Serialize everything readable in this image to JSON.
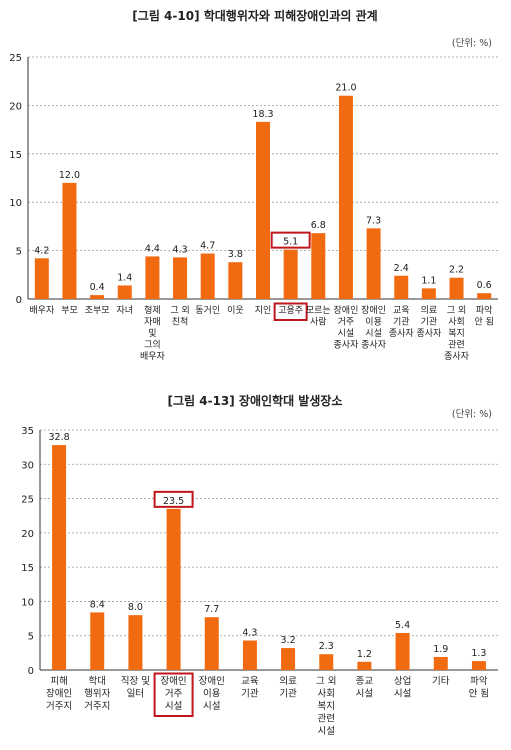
{
  "chart_data": [
    {
      "type": "bar",
      "title": "[그림 4-10] 학대행위자와 피해장애인과의 관계",
      "unit_note": "(단위: %)",
      "ylim": [
        0,
        25
      ],
      "yticks": [
        0,
        5,
        10,
        15,
        20,
        25
      ],
      "grid": true,
      "bar_color": "#f26a10",
      "highlight_color": "#c0161d",
      "highlight_index": 9,
      "categories": [
        [
          "배우자"
        ],
        [
          "부모"
        ],
        [
          "조부모"
        ],
        [
          "자녀"
        ],
        [
          "형제",
          "자매",
          "및",
          "그의",
          "배우자"
        ],
        [
          "그 외",
          "친척"
        ],
        [
          "동거인"
        ],
        [
          "이웃"
        ],
        [
          "지인"
        ],
        [
          "고용주"
        ],
        [
          "모르는",
          "사람"
        ],
        [
          "장애인",
          "거주",
          "시설",
          "종사자"
        ],
        [
          "장애인",
          "이용",
          "시설",
          "종사자"
        ],
        [
          "교육",
          "기관",
          "종사자"
        ],
        [
          "의료",
          "기관",
          "종사자"
        ],
        [
          "그 외",
          "사회",
          "복지",
          "관련",
          "종사자"
        ],
        [
          "파악",
          "안 됨"
        ]
      ],
      "values": [
        4.2,
        12.0,
        0.4,
        1.4,
        4.4,
        4.3,
        4.7,
        3.8,
        18.3,
        5.1,
        6.8,
        21.0,
        7.3,
        2.4,
        1.1,
        2.2,
        0.6
      ],
      "value_labels": [
        "4.2",
        "12.0",
        "0.4",
        "1.4",
        "4.4",
        "4.3",
        "4.7",
        "3.8",
        "18.3",
        "5.1",
        "6.8",
        "21.0",
        "7.3",
        "2.4",
        "1.1",
        "2.2",
        "0.6"
      ]
    },
    {
      "type": "bar",
      "title": "[그림 4-13] 장애인학대 발생장소",
      "unit_note": "(단위: %)",
      "ylim": [
        0,
        35
      ],
      "yticks": [
        0,
        5,
        10,
        15,
        20,
        25,
        30,
        35
      ],
      "grid": true,
      "bar_color": "#f26a10",
      "highlight_color": "#c0161d",
      "highlight_index": 3,
      "categories": [
        [
          "피해",
          "장애인",
          "거주지"
        ],
        [
          "학대",
          "행위자",
          "거주지"
        ],
        [
          "직장 및",
          "일터"
        ],
        [
          "장애인",
          "거주",
          "시설"
        ],
        [
          "장애인",
          "이용",
          "시설"
        ],
        [
          "교육",
          "기관"
        ],
        [
          "의료",
          "기관"
        ],
        [
          "그 외",
          "사회",
          "복지",
          "관련",
          "시설"
        ],
        [
          "종교",
          "시설"
        ],
        [
          "상업",
          "시설"
        ],
        [
          "기타"
        ],
        [
          "파악",
          "안 됨"
        ]
      ],
      "values": [
        32.8,
        8.4,
        8.0,
        23.5,
        7.7,
        4.3,
        3.2,
        2.3,
        1.2,
        5.4,
        1.9,
        1.3
      ],
      "value_labels": [
        "32.8",
        "8.4",
        "8.0",
        "23.5",
        "7.7",
        "4.3",
        "3.2",
        "2.3",
        "1.2",
        "5.4",
        "1.9",
        "1.3"
      ]
    }
  ]
}
